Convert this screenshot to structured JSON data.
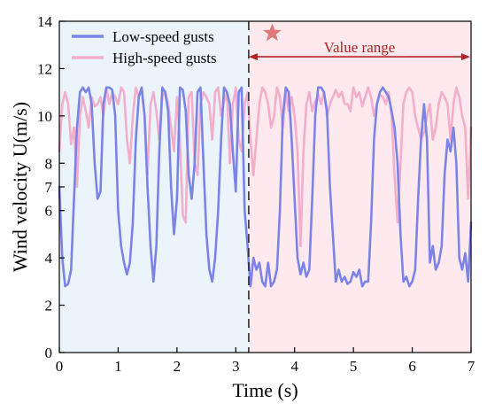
{
  "chart_data": {
    "type": "line",
    "title": "",
    "xlabel": "Time (s)",
    "ylabel": "Wind velocity U(m/s)",
    "xlim": [
      0,
      7
    ],
    "ylim": [
      0,
      14
    ],
    "xticks": [
      "0",
      "1",
      "2",
      "3",
      "4",
      "5",
      "6",
      "7"
    ],
    "yticks": [
      "0",
      "2",
      "4",
      "6",
      "7",
      "8",
      "10",
      "12",
      "14"
    ],
    "ytick_values": [
      0,
      2,
      4,
      6,
      7,
      8,
      10,
      12,
      14
    ],
    "grid": false,
    "legend_position": "top-left",
    "regions": [
      {
        "x_start": 0,
        "x_end": 3.22,
        "color": "#eaf4fa"
      },
      {
        "x_start": 3.22,
        "x_end": 7,
        "color": "#fde9ee"
      }
    ],
    "divider_x": 3.22,
    "annotation": {
      "text": "Value range",
      "x_start": 3.22,
      "x_end": 7,
      "y": 12.5,
      "color": "#b22222",
      "star_x": 3.62,
      "star_y": 13.5,
      "star_color": "#e07b7b"
    },
    "series": [
      {
        "name": "Low-speed gusts",
        "color": "#7b83e6",
        "x": [
          0,
          0.05,
          0.1,
          0.15,
          0.2,
          0.25,
          0.3,
          0.35,
          0.4,
          0.45,
          0.5,
          0.55,
          0.6,
          0.65,
          0.7,
          0.75,
          0.8,
          0.85,
          0.9,
          0.95,
          1.0,
          1.05,
          1.1,
          1.15,
          1.2,
          1.25,
          1.3,
          1.35,
          1.4,
          1.45,
          1.5,
          1.55,
          1.6,
          1.65,
          1.7,
          1.75,
          1.8,
          1.85,
          1.9,
          1.95,
          2.0,
          2.05,
          2.1,
          2.15,
          2.2,
          2.25,
          2.3,
          2.35,
          2.4,
          2.45,
          2.5,
          2.55,
          2.6,
          2.65,
          2.7,
          2.75,
          2.8,
          2.85,
          2.9,
          2.95,
          3.0,
          3.05,
          3.1,
          3.15,
          3.2,
          3.25,
          3.3,
          3.35,
          3.4,
          3.45,
          3.5,
          3.55,
          3.6,
          3.65,
          3.7,
          3.75,
          3.8,
          3.85,
          3.9,
          3.95,
          4.0,
          4.05,
          4.1,
          4.15,
          4.2,
          4.25,
          4.3,
          4.35,
          4.4,
          4.45,
          4.5,
          4.55,
          4.6,
          4.65,
          4.7,
          4.75,
          4.8,
          4.85,
          4.9,
          4.95,
          5.0,
          5.05,
          5.1,
          5.15,
          5.2,
          5.25,
          5.3,
          5.35,
          5.4,
          5.45,
          5.5,
          5.55,
          5.6,
          5.65,
          5.7,
          5.75,
          5.8,
          5.85,
          5.9,
          5.95,
          6.0,
          6.05,
          6.1,
          6.15,
          6.2,
          6.25,
          6.3,
          6.35,
          6.4,
          6.45,
          6.5,
          6.55,
          6.6,
          6.65,
          6.7,
          6.75,
          6.8,
          6.85,
          6.9,
          6.95,
          7.0
        ],
        "y": [
          7.0,
          4.0,
          2.8,
          2.9,
          3.5,
          6.5,
          9.5,
          11.0,
          11.2,
          11.0,
          11.2,
          10.5,
          8.0,
          6.5,
          6.8,
          10.5,
          11.2,
          11.2,
          11.1,
          10.0,
          6.0,
          4.5,
          3.8,
          3.3,
          3.8,
          5.5,
          9.0,
          10.8,
          11.2,
          10.0,
          7.0,
          4.5,
          3.0,
          4.5,
          8.5,
          11.2,
          11.0,
          10.2,
          7.0,
          5.0,
          6.5,
          11.2,
          11.1,
          10.2,
          7.5,
          6.5,
          8.0,
          11.0,
          11.2,
          8.0,
          5.0,
          3.5,
          3.0,
          4.0,
          6.0,
          9.0,
          11.2,
          11.0,
          10.5,
          8.5,
          6.8,
          11.0,
          11.2,
          6.0,
          4.5,
          2.8,
          4.0,
          3.5,
          3.8,
          3.0,
          2.8,
          3.8,
          2.8,
          3.0,
          3.5,
          6.0,
          10.0,
          11.2,
          11.0,
          9.0,
          6.5,
          4.0,
          3.3,
          3.8,
          3.2,
          3.5,
          6.5,
          10.0,
          11.2,
          11.2,
          11.0,
          10.2,
          7.0,
          5.0,
          3.0,
          3.5,
          3.0,
          3.2,
          2.9,
          3.0,
          3.4,
          3.2,
          3.5,
          2.8,
          3.0,
          3.0,
          5.5,
          9.0,
          10.5,
          11.0,
          11.2,
          11.0,
          10.8,
          10.2,
          9.5,
          8.0,
          5.0,
          3.0,
          3.2,
          2.8,
          3.0,
          3.5,
          6.5,
          9.0,
          10.5,
          9.0,
          3.8,
          4.5,
          3.5,
          3.8,
          4.5,
          7.5,
          9.0,
          8.5,
          9.5,
          8.0,
          4.0,
          3.5,
          4.2,
          3.0,
          5.5
        ]
      },
      {
        "name": "High-speed gusts",
        "color": "#f3aecb",
        "x": [
          0,
          0.05,
          0.1,
          0.15,
          0.2,
          0.25,
          0.3,
          0.35,
          0.4,
          0.45,
          0.5,
          0.55,
          0.6,
          0.65,
          0.7,
          0.75,
          0.8,
          0.85,
          0.9,
          0.95,
          1.0,
          1.05,
          1.1,
          1.15,
          1.2,
          1.25,
          1.3,
          1.35,
          1.4,
          1.45,
          1.5,
          1.55,
          1.6,
          1.65,
          1.7,
          1.75,
          1.8,
          1.85,
          1.9,
          1.95,
          2.0,
          2.05,
          2.1,
          2.15,
          2.2,
          2.25,
          2.3,
          2.35,
          2.4,
          2.45,
          2.5,
          2.55,
          2.6,
          2.65,
          2.7,
          2.75,
          2.8,
          2.85,
          2.9,
          2.95,
          3.0,
          3.05,
          3.1,
          3.15,
          3.2,
          3.25,
          3.3,
          3.35,
          3.4,
          3.45,
          3.5,
          3.55,
          3.6,
          3.65,
          3.7,
          3.75,
          3.8,
          3.85,
          3.9,
          3.95,
          4.0,
          4.05,
          4.1,
          4.15,
          4.2,
          4.25,
          4.3,
          4.35,
          4.4,
          4.45,
          4.5,
          4.55,
          4.6,
          4.65,
          4.7,
          4.75,
          4.8,
          4.85,
          4.9,
          4.95,
          5.0,
          5.05,
          5.1,
          5.15,
          5.2,
          5.25,
          5.3,
          5.35,
          5.4,
          5.45,
          5.5,
          5.55,
          5.6,
          5.65,
          5.7,
          5.75,
          5.8,
          5.85,
          5.9,
          5.95,
          6.0,
          6.05,
          6.1,
          6.15,
          6.2,
          6.25,
          6.3,
          6.35,
          6.4,
          6.45,
          6.5,
          6.55,
          6.6,
          6.65,
          6.7,
          6.75,
          6.8,
          6.85,
          6.9,
          6.95,
          7.0
        ],
        "y": [
          8.5,
          10.5,
          11.0,
          10.5,
          8.8,
          9.5,
          7.0,
          10.0,
          10.8,
          10.2,
          9.5,
          10.8,
          10.4,
          10.5,
          10.8,
          10.0,
          11.2,
          10.5,
          11.0,
          10.8,
          10.5,
          11.2,
          11.0,
          9.0,
          8.0,
          10.0,
          11.2,
          10.8,
          11.1,
          10.0,
          7.5,
          10.5,
          11.0,
          10.2,
          9.0,
          10.8,
          11.0,
          10.5,
          9.5,
          8.5,
          10.8,
          9.0,
          5.8,
          5.5,
          10.8,
          11.0,
          8.0,
          7.5,
          10.5,
          11.0,
          10.8,
          10.5,
          9.0,
          11.0,
          11.2,
          10.0,
          10.6,
          11.0,
          8.0,
          10.5,
          11.2,
          9.0,
          8.5,
          10.5,
          11.0,
          9.0,
          7.5,
          9.0,
          10.5,
          11.2,
          11.0,
          10.5,
          9.5,
          10.0,
          11.2,
          10.8,
          9.5,
          11.0,
          10.2,
          10.8,
          10.0,
          8.5,
          4.5,
          8.5,
          10.5,
          11.0,
          10.2,
          10.6,
          10.9,
          10.5,
          11.0,
          10.0,
          10.5,
          10.8,
          11.1,
          10.8,
          11.0,
          10.5,
          10.5,
          10.2,
          11.2,
          10.8,
          11.0,
          10.4,
          10.8,
          11.2,
          10.8,
          10.0,
          10.5,
          10.9,
          10.8,
          10.5,
          11.0,
          10.0,
          7.5,
          5.5,
          8.0,
          10.5,
          11.0,
          11.2,
          11.0,
          10.0,
          9.5,
          9.0,
          9.3,
          10.0,
          10.5,
          9.0,
          9.5,
          10.5,
          11.0,
          10.8,
          10.5,
          9.0,
          10.5,
          11.2,
          10.8,
          10.0,
          9.5,
          6.5,
          9.5
        ]
      }
    ]
  }
}
